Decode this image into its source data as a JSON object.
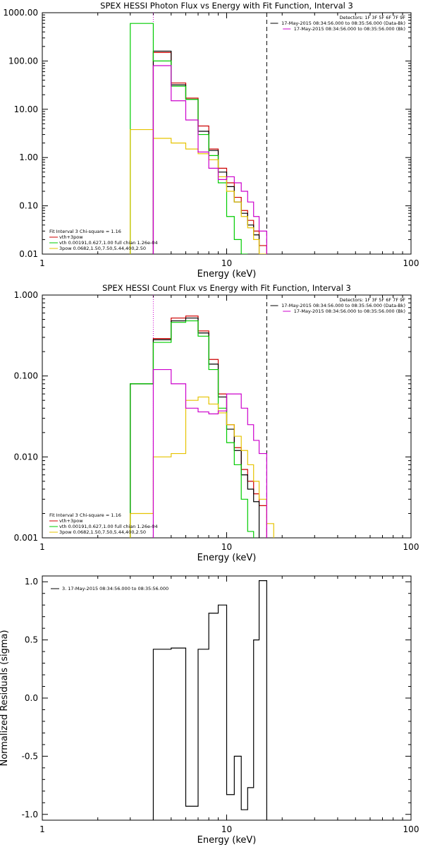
{
  "chart_data": [
    {
      "type": "line",
      "title": "SPEX HESSI Photon Flux vs Energy with Fit Function, Interval 3",
      "xlabel": "Energy (keV)",
      "ylabel": "",
      "xscale": "log",
      "yscale": "log",
      "xlim": [
        1,
        100
      ],
      "ylim": [
        0.01,
        1000
      ],
      "xticks": [
        {
          "v": 1,
          "label": "1"
        },
        {
          "v": 10,
          "label": "10"
        },
        {
          "v": 100,
          "label": "100"
        }
      ],
      "yticks": [
        {
          "v": 0.01,
          "label": "0.01"
        },
        {
          "v": 0.1,
          "label": "0.10"
        },
        {
          "v": 1,
          "label": "1.00"
        },
        {
          "v": 10,
          "label": "10.00"
        },
        {
          "v": 100,
          "label": "100.00"
        },
        {
          "v": 1000,
          "label": "1000.00"
        }
      ],
      "vlines": [
        {
          "x": 4.0,
          "style": "dotted",
          "color": "#cc00cc"
        },
        {
          "x": 16.5,
          "style": "dashed",
          "color": "#000000"
        }
      ],
      "header": [
        "Detectors: 1F 3F 5F 6F 7F 9F",
        "17-May-2015 08:34:56.000 to 08:35:56.000 (Data-Bk)",
        "17-May-2015 08:34:56.000 to 08:35:56.000 (Bk)"
      ],
      "header_colors": [
        "#000000",
        "#000000",
        "#cc00cc"
      ],
      "legend": [
        "Fit Interval 3   Chi-square = 1.16",
        "vth+3pow",
        "vth 0.00191,0.627,1.00  full chian 1.26e-04",
        "3pow 0.0682,1.50,7.50,5.44,400,2.50"
      ],
      "legend_colors": [
        "#000000",
        "#cc0000",
        "#00cc00",
        "#e6c300"
      ],
      "edges": [
        3.0,
        4.0,
        5.0,
        6.0,
        7.0,
        8.0,
        9.0,
        10.0,
        11.0,
        12.0,
        13.0,
        14.0,
        15.0,
        16.5,
        18.0
      ],
      "series": [
        {
          "color": "#cc0000",
          "values": [
            null,
            150,
            35,
            17,
            4.5,
            1.5,
            0.6,
            0.3,
            0.15,
            0.08,
            0.05,
            0.03,
            0.015,
            null
          ]
        },
        {
          "color": "#000000",
          "values": [
            null,
            160,
            32,
            16,
            3.5,
            1.4,
            0.5,
            0.25,
            0.12,
            0.07,
            0.04,
            0.025,
            null,
            null
          ]
        },
        {
          "color": "#00cc00",
          "values": [
            600,
            100,
            30,
            16,
            3.0,
            1.1,
            0.3,
            0.06,
            0.02,
            0.01,
            null,
            null,
            null,
            null
          ]
        },
        {
          "color": "#e6c300",
          "values": [
            3.8,
            2.5,
            2.0,
            1.5,
            1.2,
            0.9,
            0.4,
            0.2,
            0.12,
            0.06,
            0.035,
            0.02,
            0.01,
            null
          ]
        },
        {
          "color": "#cc00cc",
          "values": [
            null,
            80,
            15,
            6,
            1.3,
            0.6,
            0.35,
            0.4,
            0.3,
            0.2,
            0.12,
            0.06,
            0.03,
            null
          ]
        }
      ]
    },
    {
      "type": "line",
      "title": "SPEX HESSI Count Flux vs Energy with Fit Function, Interval 3",
      "xlabel": "Energy (keV)",
      "ylabel": "",
      "xscale": "log",
      "yscale": "log",
      "xlim": [
        1,
        100
      ],
      "ylim": [
        0.001,
        1
      ],
      "xticks": [
        {
          "v": 1,
          "label": "1"
        },
        {
          "v": 10,
          "label": "10"
        },
        {
          "v": 100,
          "label": "100"
        }
      ],
      "yticks": [
        {
          "v": 0.001,
          "label": "0.001"
        },
        {
          "v": 0.01,
          "label": "0.010"
        },
        {
          "v": 0.1,
          "label": "0.100"
        },
        {
          "v": 1,
          "label": "1.000"
        }
      ],
      "vlines": [
        {
          "x": 4.0,
          "style": "dotted",
          "color": "#cc00cc"
        },
        {
          "x": 16.5,
          "style": "dashed",
          "color": "#000000"
        }
      ],
      "header": [
        "Detectors: 1F 3F 5F 6F 7F 9F",
        "17-May-2015 08:34:56.000 to 08:35:56.000 (Data-Bk)",
        "17-May-2015 08:34:56.000 to 08:35:56.000 (Bk)"
      ],
      "header_colors": [
        "#000000",
        "#000000",
        "#cc00cc"
      ],
      "legend": [
        "Fit Interval 3   Chi-square = 1.16",
        "vth+3pow",
        "vth 0.00191,0.627,1.00  full chian 1.26e-04",
        "3pow 0.0682,1.50,7.50,5.44,400,2.50"
      ],
      "legend_colors": [
        "#000000",
        "#cc0000",
        "#00cc00",
        "#e6c300"
      ],
      "edges": [
        3.0,
        4.0,
        5.0,
        6.0,
        7.0,
        8.0,
        9.0,
        10.0,
        11.0,
        12.0,
        13.0,
        14.0,
        15.0,
        16.5,
        18.0
      ],
      "series": [
        {
          "color": "#cc0000",
          "values": [
            0.08,
            0.29,
            0.52,
            0.55,
            0.36,
            0.16,
            0.06,
            0.025,
            0.013,
            0.007,
            0.005,
            0.0035,
            0.0025,
            null
          ]
        },
        {
          "color": "#000000",
          "values": [
            0.08,
            0.28,
            0.48,
            0.52,
            0.34,
            0.14,
            0.055,
            0.022,
            0.012,
            0.006,
            0.004,
            0.0028,
            null,
            null
          ]
        },
        {
          "color": "#00cc00",
          "values": [
            0.08,
            0.26,
            0.46,
            0.48,
            0.31,
            0.12,
            0.04,
            0.015,
            0.008,
            0.003,
            0.0012,
            null,
            null,
            null
          ]
        },
        {
          "color": "#e6c300",
          "values": [
            0.002,
            0.01,
            0.011,
            0.05,
            0.055,
            0.045,
            0.035,
            0.025,
            0.018,
            0.012,
            0.008,
            0.005,
            0.003,
            0.0015
          ]
        },
        {
          "color": "#cc00cc",
          "values": [
            null,
            0.12,
            0.08,
            0.04,
            0.036,
            0.034,
            0.037,
            0.06,
            0.06,
            0.04,
            0.025,
            0.016,
            0.011,
            null
          ]
        }
      ]
    },
    {
      "type": "line",
      "title": "",
      "xlabel": "Energy (keV)",
      "ylabel": "Normalized Residuals (sigma)",
      "xscale": "log",
      "yscale": "linear",
      "xlim": [
        1,
        100
      ],
      "ylim": [
        -1.05,
        1.05
      ],
      "xticks": [
        {
          "v": 1,
          "label": "1"
        },
        {
          "v": 10,
          "label": "10"
        },
        {
          "v": 100,
          "label": "100"
        }
      ],
      "yticks": [
        {
          "v": -1,
          "label": "-1.0"
        },
        {
          "v": -0.5,
          "label": "-0.5"
        },
        {
          "v": 0,
          "label": "0.0"
        },
        {
          "v": 0.5,
          "label": "0.5"
        },
        {
          "v": 1,
          "label": "1.0"
        }
      ],
      "legend": [
        "3. 17-May-2015 08:34:56.000 to 08:35:56.000"
      ],
      "legend_colors": [
        "#000000"
      ],
      "edges": [
        4.0,
        5.0,
        6.0,
        7.0,
        8.0,
        9.0,
        10.0,
        11.0,
        12.0,
        13.0,
        14.0,
        15.0,
        16.5
      ],
      "series": [
        {
          "color": "#000000",
          "values": [
            0.42,
            0.43,
            -0.93,
            0.42,
            0.73,
            0.8,
            -0.83,
            -0.5,
            -0.96,
            -0.77,
            0.5,
            1.01
          ]
        }
      ]
    }
  ]
}
